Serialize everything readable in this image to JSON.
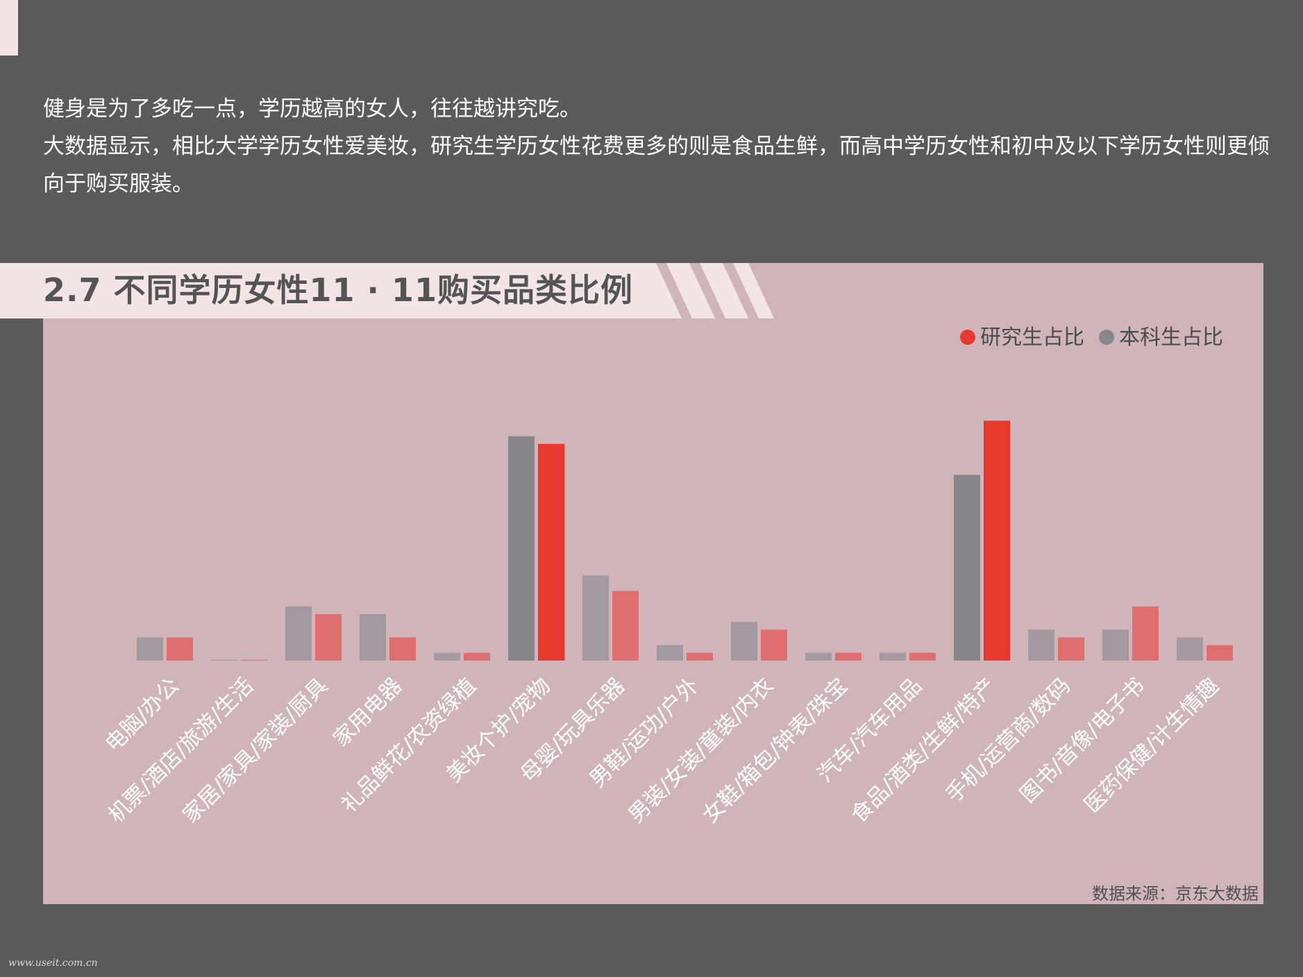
{
  "intro": {
    "line1": "健身是为了多吃一点，学历越高的女人，往往越讲究吃。",
    "line2": "大数据显示，相比大学学历女性爱美妆，研究生学历女性花费更多的则是食品生鲜，而高中学历女性和初中及以下学历女性则更倾向于购买服装。"
  },
  "section_title": "2.7 不同学历女性11 · 11购买品类比例",
  "source": "数据来源：京东大数据",
  "watermark": "www.useit.com.cn",
  "colors": {
    "background": "#5a5a5c",
    "panel": "#cfb5b9",
    "title_band": "#f3e5e6",
    "graduate": "#e8392d",
    "undergraduate": "#87868d"
  },
  "chart_data": {
    "type": "bar",
    "categories": [
      "电脑/办公",
      "机票/酒店/旅游/生活",
      "家居/家具/家装/厨具",
      "家用电器",
      "礼品鲜花/农资绿植",
      "美妆个护/宠物",
      "母婴/玩具乐器",
      "男鞋/运功/户外",
      "男装/女装/童装/内衣",
      "女鞋/箱包/钟表/珠宝",
      "汽车/汽车用品",
      "食品/酒类/生鲜/特产",
      "手机/运营商/数码",
      "图书/音像/电子书",
      "医药保健/计生情趣"
    ],
    "series": [
      {
        "name": "本科生占比",
        "color": "#87868d",
        "values": [
          3.0,
          0.1,
          7.0,
          6.0,
          1.0,
          29.0,
          11.0,
          2.0,
          5.0,
          1.0,
          1.0,
          24.0,
          4.0,
          4.0,
          3.0
        ]
      },
      {
        "name": "研究生占比",
        "color": "#e8392d",
        "values": [
          3.0,
          0.1,
          6.0,
          3.0,
          1.0,
          28.0,
          9.0,
          1.0,
          4.0,
          1.0,
          1.0,
          31.0,
          3.0,
          7.0,
          2.0
        ]
      }
    ],
    "legend": [
      {
        "name": "研究生占比",
        "color": "#e8392d"
      },
      {
        "name": "本科生占比",
        "color": "#87868d"
      }
    ],
    "legend_position": "top-right",
    "ylim": [
      0,
      33
    ],
    "grid": false
  }
}
